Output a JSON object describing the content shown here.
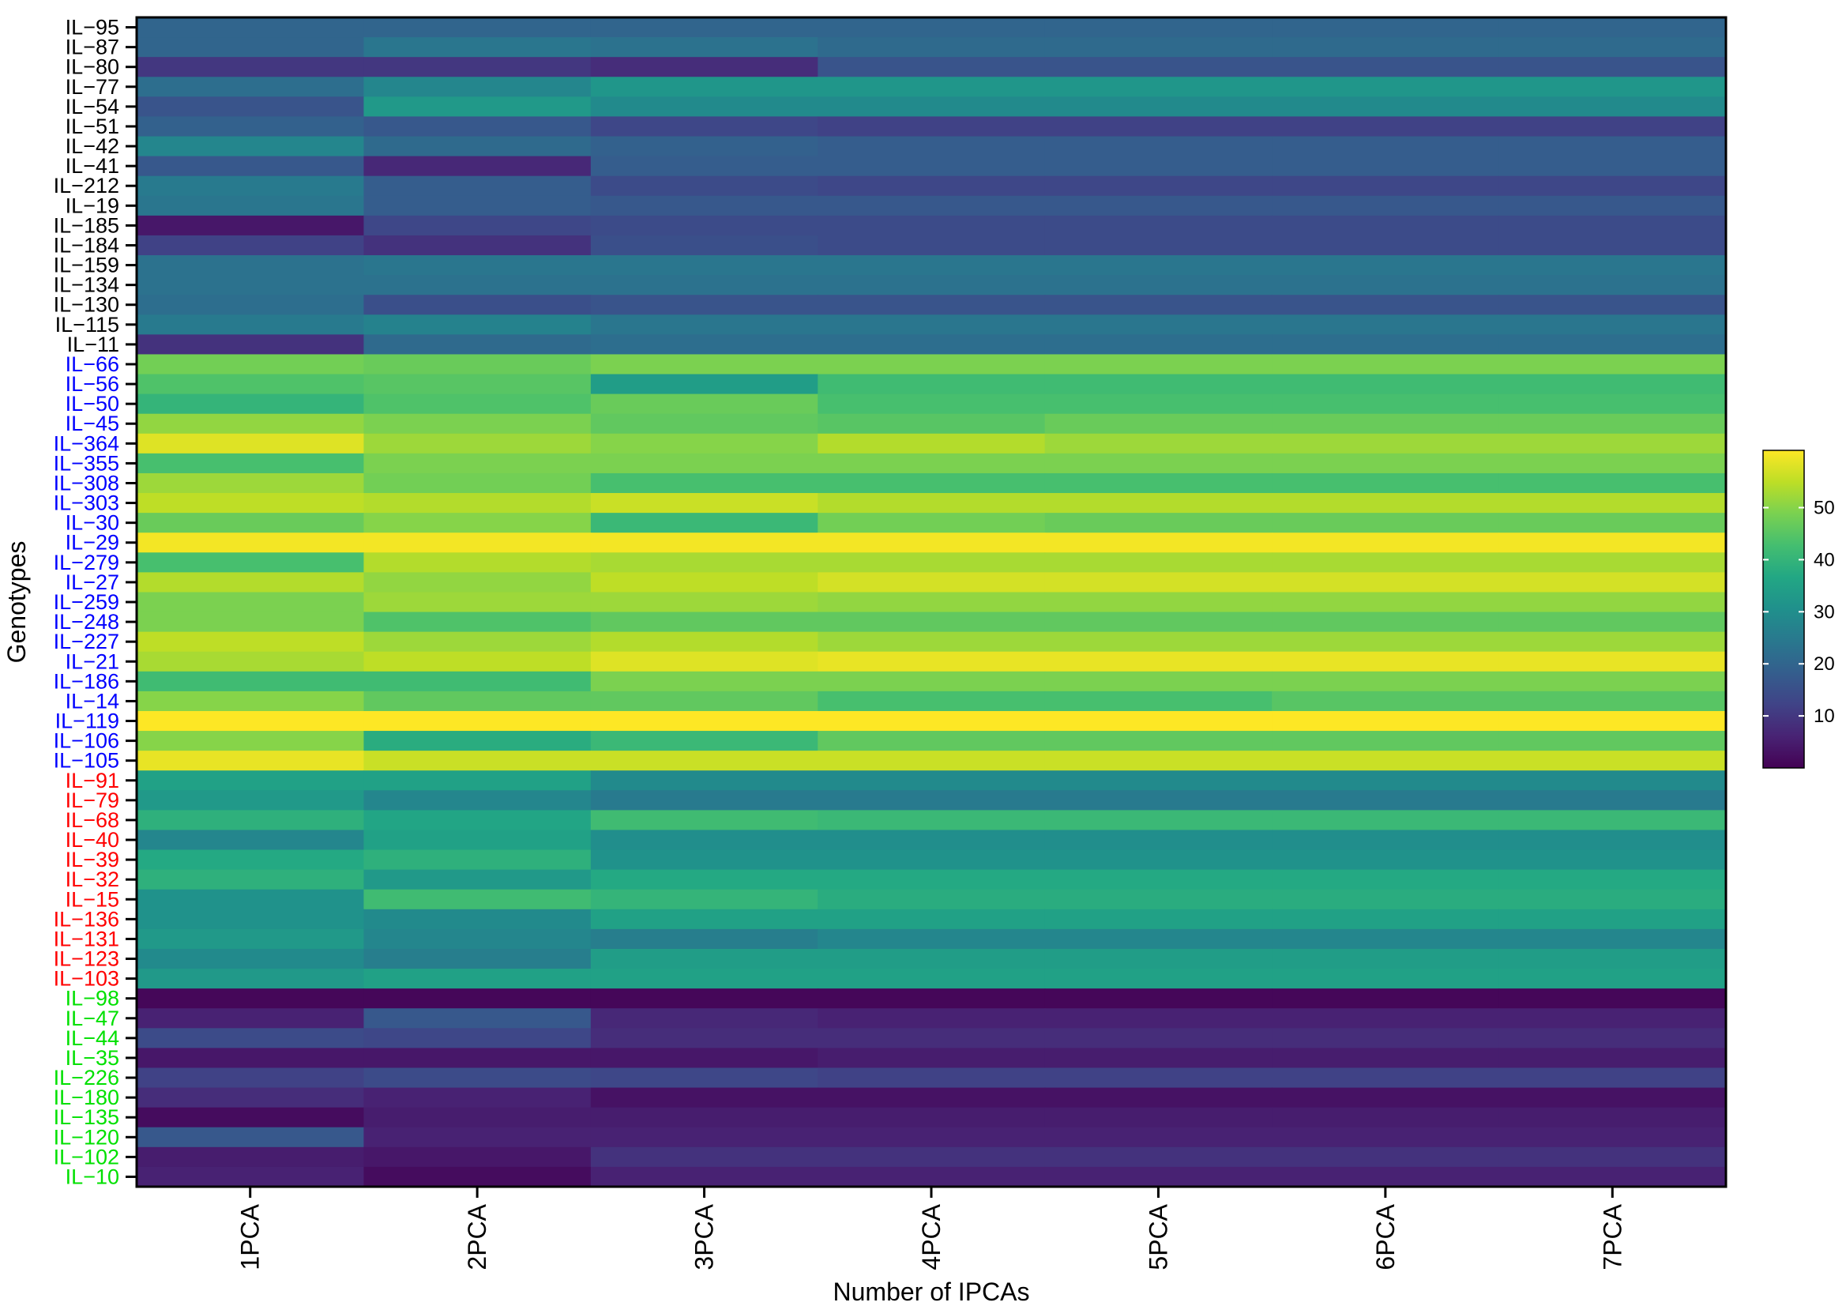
{
  "chart_data": {
    "type": "heatmap",
    "xlabel": "Number of IPCAs",
    "ylabel": "Genotypes",
    "x_categories": [
      "1PCA",
      "2PCA",
      "3PCA",
      "4PCA",
      "5PCA",
      "6PCA",
      "7PCA"
    ],
    "rows": [
      {
        "label": "IL−95",
        "group": "black",
        "values": [
          20,
          20,
          20,
          20,
          20,
          20,
          20
        ]
      },
      {
        "label": "IL−87",
        "group": "black",
        "values": [
          20,
          24,
          23,
          21,
          21,
          21,
          21
        ]
      },
      {
        "label": "IL−80",
        "group": "black",
        "values": [
          10,
          10,
          8,
          16,
          16,
          16,
          16
        ]
      },
      {
        "label": "IL−77",
        "group": "black",
        "values": [
          22,
          28,
          32,
          32,
          32,
          32,
          32
        ]
      },
      {
        "label": "IL−54",
        "group": "black",
        "values": [
          16,
          33,
          29,
          29,
          29,
          29,
          29
        ]
      },
      {
        "label": "IL−51",
        "group": "black",
        "values": [
          19,
          17,
          13,
          12,
          12,
          12,
          12
        ]
      },
      {
        "label": "IL−42",
        "group": "black",
        "values": [
          28,
          21,
          19,
          18,
          18,
          18,
          18
        ]
      },
      {
        "label": "IL−41",
        "group": "black",
        "values": [
          17,
          7,
          18,
          18,
          18,
          18,
          18
        ]
      },
      {
        "label": "IL−212",
        "group": "black",
        "values": [
          25,
          18,
          14,
          13,
          13,
          13,
          13
        ]
      },
      {
        "label": "IL−19",
        "group": "black",
        "values": [
          24,
          18,
          17,
          17,
          17,
          17,
          17
        ]
      },
      {
        "label": "IL−185",
        "group": "black",
        "values": [
          4,
          13,
          14,
          14,
          14,
          14,
          14
        ]
      },
      {
        "label": "IL−184",
        "group": "black",
        "values": [
          12,
          9,
          15,
          14,
          14,
          14,
          14
        ]
      },
      {
        "label": "IL−159",
        "group": "black",
        "values": [
          23,
          24,
          24,
          24,
          24,
          24,
          24
        ]
      },
      {
        "label": "IL−134",
        "group": "black",
        "values": [
          23,
          23,
          23,
          23,
          23,
          23,
          23
        ]
      },
      {
        "label": "IL−130",
        "group": "black",
        "values": [
          22,
          15,
          16,
          16,
          16,
          16,
          16
        ]
      },
      {
        "label": "IL−115",
        "group": "black",
        "values": [
          25,
          27,
          24,
          24,
          24,
          24,
          24
        ]
      },
      {
        "label": "IL−11",
        "group": "black",
        "values": [
          9,
          21,
          22,
          22,
          22,
          22,
          22
        ]
      },
      {
        "label": "IL−66",
        "group": "blue",
        "values": [
          48,
          47,
          49,
          49,
          49,
          49,
          49
        ]
      },
      {
        "label": "IL−56",
        "group": "blue",
        "values": [
          44,
          45,
          34,
          42,
          42,
          42,
          42
        ]
      },
      {
        "label": "IL−50",
        "group": "blue",
        "values": [
          40,
          44,
          47,
          43,
          43,
          43,
          43
        ]
      },
      {
        "label": "IL−45",
        "group": "blue",
        "values": [
          51,
          49,
          46,
          45,
          47,
          47,
          47
        ]
      },
      {
        "label": "IL−364",
        "group": "blue",
        "values": [
          58,
          52,
          50,
          54,
          52,
          52,
          52
        ]
      },
      {
        "label": "IL−355",
        "group": "blue",
        "values": [
          43,
          49,
          49,
          49,
          49,
          49,
          49
        ]
      },
      {
        "label": "IL−308",
        "group": "blue",
        "values": [
          52,
          48,
          43,
          43,
          43,
          43,
          43
        ]
      },
      {
        "label": "IL−303",
        "group": "blue",
        "values": [
          55,
          54,
          56,
          54,
          54,
          54,
          54
        ]
      },
      {
        "label": "IL−30",
        "group": "blue",
        "values": [
          47,
          50,
          41,
          48,
          47,
          47,
          47
        ]
      },
      {
        "label": "IL−29",
        "group": "blue",
        "values": [
          60,
          60,
          60,
          60,
          60,
          60,
          60
        ]
      },
      {
        "label": "IL−279",
        "group": "blue",
        "values": [
          43,
          54,
          53,
          53,
          53,
          53,
          53
        ]
      },
      {
        "label": "IL−27",
        "group": "blue",
        "values": [
          54,
          51,
          55,
          57,
          57,
          57,
          57
        ]
      },
      {
        "label": "IL−259",
        "group": "blue",
        "values": [
          49,
          52,
          52,
          51,
          51,
          51,
          51
        ]
      },
      {
        "label": "IL−248",
        "group": "blue",
        "values": [
          49,
          44,
          46,
          46,
          46,
          46,
          46
        ]
      },
      {
        "label": "IL−227",
        "group": "blue",
        "values": [
          55,
          52,
          54,
          52,
          52,
          52,
          52
        ]
      },
      {
        "label": "IL−21",
        "group": "blue",
        "values": [
          53,
          55,
          58,
          59,
          59,
          59,
          59
        ]
      },
      {
        "label": "IL−186",
        "group": "blue",
        "values": [
          42,
          42,
          49,
          49,
          49,
          49,
          49
        ]
      },
      {
        "label": "IL−14",
        "group": "blue",
        "values": [
          50,
          46,
          46,
          43,
          43,
          45,
          45
        ]
      },
      {
        "label": "IL−119",
        "group": "blue",
        "values": [
          61,
          61,
          61,
          61,
          61,
          61,
          61
        ]
      },
      {
        "label": "IL−106",
        "group": "blue",
        "values": [
          50,
          38,
          41,
          46,
          46,
          46,
          46
        ]
      },
      {
        "label": "IL−105",
        "group": "blue",
        "values": [
          59,
          56,
          56,
          56,
          56,
          56,
          56
        ]
      },
      {
        "label": "IL−91",
        "group": "red",
        "values": [
          35,
          35,
          29,
          29,
          29,
          29,
          29
        ]
      },
      {
        "label": "IL−79",
        "group": "red",
        "values": [
          33,
          28,
          25,
          25,
          25,
          25,
          25
        ]
      },
      {
        "label": "IL−68",
        "group": "red",
        "values": [
          39,
          36,
          42,
          41,
          41,
          41,
          41
        ]
      },
      {
        "label": "IL−40",
        "group": "red",
        "values": [
          28,
          35,
          30,
          30,
          30,
          30,
          30
        ]
      },
      {
        "label": "IL−39",
        "group": "red",
        "values": [
          37,
          39,
          31,
          31,
          31,
          31,
          31
        ]
      },
      {
        "label": "IL−32",
        "group": "red",
        "values": [
          39,
          33,
          37,
          37,
          37,
          37,
          37
        ]
      },
      {
        "label": "IL−15",
        "group": "red",
        "values": [
          31,
          42,
          40,
          38,
          38,
          38,
          38
        ]
      },
      {
        "label": "IL−136",
        "group": "red",
        "values": [
          31,
          29,
          35,
          35,
          35,
          35,
          35
        ]
      },
      {
        "label": "IL−131",
        "group": "red",
        "values": [
          33,
          28,
          26,
          28,
          28,
          28,
          28
        ]
      },
      {
        "label": "IL−123",
        "group": "red",
        "values": [
          29,
          26,
          34,
          34,
          34,
          34,
          34
        ]
      },
      {
        "label": "IL−103",
        "group": "red",
        "values": [
          33,
          35,
          35,
          35,
          35,
          35,
          35
        ]
      },
      {
        "label": "IL−98",
        "group": "green",
        "values": [
          1,
          1,
          1,
          1,
          1,
          1,
          1
        ]
      },
      {
        "label": "IL−47",
        "group": "green",
        "values": [
          6,
          17,
          7,
          6,
          6,
          6,
          6
        ]
      },
      {
        "label": "IL−44",
        "group": "green",
        "values": [
          14,
          13,
          8,
          8,
          8,
          8,
          8
        ]
      },
      {
        "label": "IL−35",
        "group": "green",
        "values": [
          4,
          4,
          4,
          5,
          5,
          5,
          5
        ]
      },
      {
        "label": "IL−226",
        "group": "green",
        "values": [
          12,
          14,
          13,
          12,
          12,
          12,
          12
        ]
      },
      {
        "label": "IL−180",
        "group": "green",
        "values": [
          8,
          6,
          3,
          3,
          3,
          3,
          3
        ]
      },
      {
        "label": "IL−135",
        "group": "green",
        "values": [
          2,
          5,
          5,
          5,
          5,
          5,
          5
        ]
      },
      {
        "label": "IL−120",
        "group": "green",
        "values": [
          17,
          6,
          6,
          6,
          6,
          6,
          6
        ]
      },
      {
        "label": "IL−102",
        "group": "green",
        "values": [
          5,
          4,
          9,
          9,
          9,
          9,
          9
        ]
      },
      {
        "label": "IL−10",
        "group": "green",
        "values": [
          6,
          2,
          6,
          6,
          6,
          6,
          6
        ]
      }
    ],
    "group_colors": {
      "black": "#000000",
      "blue": "#0000ff",
      "red": "#ff0000",
      "green": "#00e000"
    },
    "colorbar": {
      "colormap": "viridis",
      "range": [
        0,
        61
      ],
      "ticks": [
        10,
        20,
        30,
        40,
        50
      ],
      "tick_labels": [
        "10",
        "20",
        "30",
        "40",
        "50"
      ]
    }
  }
}
